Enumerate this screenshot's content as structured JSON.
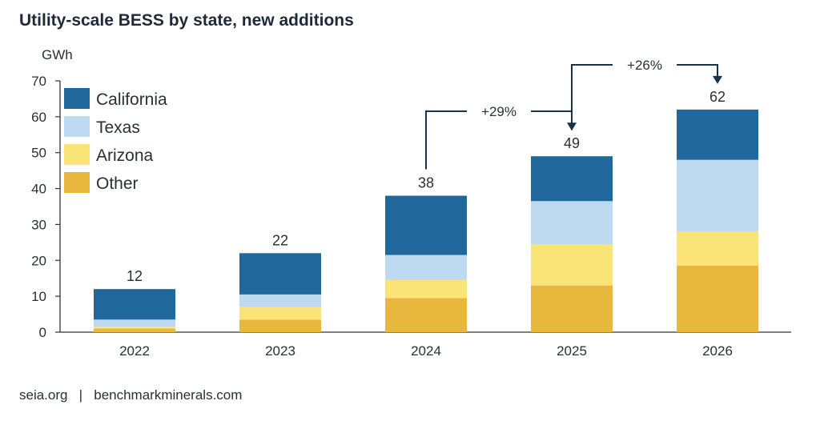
{
  "title": "Utility-scale BESS by state, new additions",
  "footer": "seia.org   |   benchmarkminerals.com",
  "chart_data": {
    "type": "bar",
    "stacked": true,
    "title": "Utility-scale BESS by state, new additions",
    "ylabel": "GWh",
    "xlabel": "",
    "ylim": [
      0,
      70
    ],
    "yticks": [
      0,
      10,
      20,
      30,
      40,
      50,
      60,
      70
    ],
    "categories": [
      "2022",
      "2023",
      "2024",
      "2025",
      "2026"
    ],
    "series": [
      {
        "name": "Other",
        "color": "#E8B73E",
        "values": [
          1.0,
          3.5,
          9.5,
          13.0,
          18.5
        ]
      },
      {
        "name": "Arizona",
        "color": "#FAE377",
        "values": [
          0.5,
          3.5,
          5.0,
          11.5,
          9.5
        ]
      },
      {
        "name": "Texas",
        "color": "#BDDAF0",
        "values": [
          2.0,
          3.5,
          7.0,
          12.0,
          20.0
        ]
      },
      {
        "name": "California",
        "color": "#20679B",
        "values": [
          8.5,
          11.5,
          16.5,
          12.5,
          14.0
        ]
      }
    ],
    "totals": [
      "12",
      "22",
      "38",
      "49",
      "62"
    ],
    "legend_order": [
      "California",
      "Texas",
      "Arizona",
      "Other"
    ],
    "legend_position": "top-left",
    "annotations": [
      {
        "text": "+29%",
        "from": "2024",
        "to": "2025"
      },
      {
        "text": "+26%",
        "from": "2025",
        "to": "2026"
      }
    ],
    "grid": false
  }
}
